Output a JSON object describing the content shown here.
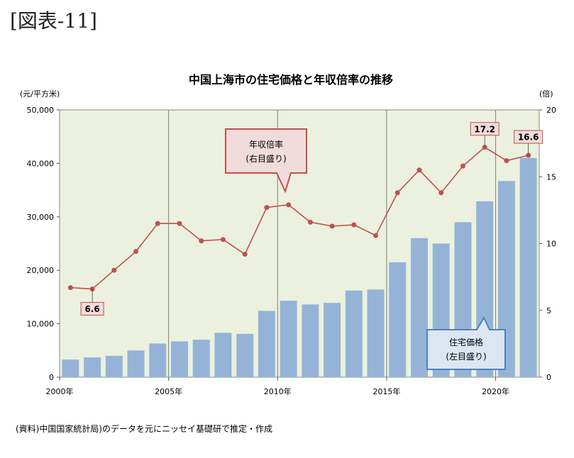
{
  "figure_label": "[図表-11]",
  "source_note": "(資料)中国国家統計局)のデータを元にニッセイ基礎研で推定・作成",
  "chart_data": {
    "type": "bar+line",
    "title": "中国上海市の住宅価格と年収倍率の推移",
    "y_left_unit": "(元/平方米)",
    "y_right_unit": "(倍)",
    "y_left_lim": [
      0,
      50000
    ],
    "y_right_lim": [
      0,
      20
    ],
    "y_left_ticks": [
      "0",
      "10,000",
      "20,000",
      "30,000",
      "40,000",
      "50,000"
    ],
    "y_right_ticks": [
      "0",
      "5",
      "10",
      "15",
      "20"
    ],
    "x_tick_labels": [
      "2000年",
      "2005年",
      "2010年",
      "2015年",
      "2020年"
    ],
    "x": [
      2000,
      2001,
      2002,
      2003,
      2004,
      2005,
      2006,
      2007,
      2008,
      2009,
      2010,
      2011,
      2012,
      2013,
      2014,
      2015,
      2016,
      2017,
      2018,
      2019,
      2020,
      2021
    ],
    "series": [
      {
        "name": "住宅価格",
        "type": "bar",
        "axis": "left",
        "color": "#95b3d7",
        "values": [
          3300,
          3700,
          4000,
          5000,
          6300,
          6700,
          7000,
          8300,
          8100,
          12400,
          14300,
          13600,
          13900,
          16200,
          16400,
          21500,
          26000,
          25000,
          29000,
          32900,
          36700,
          41000
        ]
      },
      {
        "name": "年収倍率",
        "type": "line",
        "axis": "right",
        "color": "#c0504d",
        "values": [
          6.7,
          6.6,
          8.0,
          9.4,
          11.5,
          11.5,
          10.2,
          10.3,
          9.2,
          12.7,
          12.9,
          11.6,
          11.3,
          11.4,
          10.6,
          13.8,
          15.5,
          13.8,
          15.8,
          17.2,
          16.2,
          16.6
        ]
      }
    ],
    "data_labels": [
      {
        "year": 2001,
        "text": "6.6"
      },
      {
        "year": 2019,
        "text": "17.2"
      },
      {
        "year": 2021,
        "text": "16.6"
      }
    ],
    "callouts": {
      "ratio": [
        "年収倍率",
        "(右目盛り)"
      ],
      "price": [
        "住宅価格",
        "(左目盛り)"
      ]
    },
    "plot_background": "#ebf1de",
    "grid": "vertical at 5-year ticks"
  }
}
